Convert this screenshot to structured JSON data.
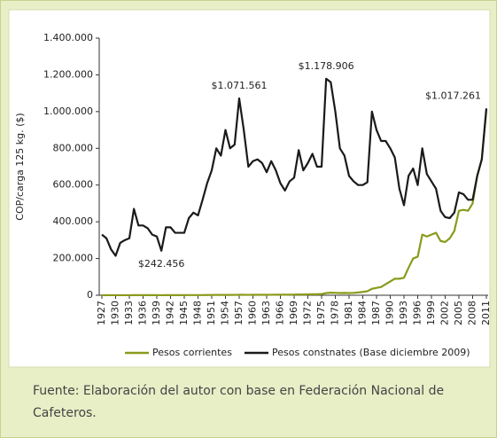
{
  "chart_data": {
    "type": "line",
    "y_label": "COP/carga 125 kg. ($)",
    "x": [
      1927,
      1928,
      1929,
      1930,
      1931,
      1932,
      1933,
      1934,
      1935,
      1936,
      1937,
      1938,
      1939,
      1940,
      1941,
      1942,
      1943,
      1944,
      1945,
      1946,
      1947,
      1948,
      1949,
      1950,
      1951,
      1952,
      1953,
      1954,
      1955,
      1956,
      1957,
      1958,
      1959,
      1960,
      1961,
      1962,
      1963,
      1964,
      1965,
      1966,
      1967,
      1968,
      1969,
      1970,
      1971,
      1972,
      1973,
      1974,
      1975,
      1976,
      1977,
      1978,
      1979,
      1980,
      1981,
      1982,
      1983,
      1984,
      1985,
      1986,
      1987,
      1988,
      1989,
      1990,
      1991,
      1992,
      1993,
      1994,
      1995,
      1996,
      1997,
      1998,
      1999,
      2000,
      2001,
      2002,
      2003,
      2004,
      2005,
      2006,
      2007,
      2008,
      2009,
      2010,
      2011
    ],
    "series": [
      {
        "name": "Pesos corrientes",
        "color": "#8a9a1b",
        "values": [
          400,
          400,
          350,
          300,
          300,
          300,
          350,
          500,
          450,
          450,
          450,
          450,
          450,
          400,
          500,
          500,
          550,
          600,
          650,
          800,
          900,
          950,
          1000,
          1200,
          1400,
          1700,
          1800,
          2000,
          2000,
          2100,
          2700,
          2500,
          2200,
          2300,
          2400,
          2400,
          2400,
          2800,
          2900,
          3000,
          3000,
          3300,
          3500,
          4500,
          4200,
          4700,
          5500,
          5500,
          6500,
          12000,
          14000,
          13000,
          12000,
          12500,
          12000,
          13000,
          15000,
          18000,
          22000,
          35000,
          40000,
          45000,
          60000,
          75000,
          90000,
          90000,
          95000,
          150000,
          200000,
          210000,
          330000,
          320000,
          330000,
          340000,
          295000,
          290000,
          310000,
          350000,
          460000,
          465000,
          460000,
          500000,
          650000,
          740000,
          1010000
        ]
      },
      {
        "name": "Pesos constnates (Base diciembre 2009)",
        "color": "#1a1a1a",
        "values": [
          330000,
          310000,
          250000,
          215000,
          285000,
          300000,
          310000,
          470000,
          380000,
          380000,
          365000,
          330000,
          320000,
          242456,
          370000,
          370000,
          340000,
          340000,
          340000,
          420000,
          450000,
          435000,
          520000,
          610000,
          680000,
          800000,
          760000,
          900000,
          800000,
          820000,
          1071561,
          900000,
          700000,
          730000,
          740000,
          720000,
          670000,
          730000,
          680000,
          610000,
          570000,
          620000,
          640000,
          790000,
          680000,
          720000,
          770000,
          700000,
          700000,
          1178906,
          1160000,
          1000000,
          800000,
          760000,
          650000,
          620000,
          600000,
          600000,
          615000,
          1000000,
          900000,
          840000,
          840000,
          800000,
          750000,
          580000,
          490000,
          650000,
          690000,
          600000,
          800000,
          660000,
          620000,
          580000,
          460000,
          425000,
          420000,
          450000,
          560000,
          550000,
          520000,
          520000,
          650000,
          740000,
          1017261
        ]
      }
    ],
    "annotations": [
      {
        "text": "$1.071.561",
        "x": 1957,
        "y": 1071561
      },
      {
        "text": "$1.178.906",
        "x": 1976,
        "y": 1178906
      },
      {
        "text": "$242.456",
        "x": 1940,
        "y": 242456
      },
      {
        "text": "$1.017.261",
        "x": 2011,
        "y": 1017261
      }
    ],
    "xlim": [
      1927,
      2011
    ],
    "xticks": [
      1927,
      1930,
      1933,
      1936,
      1939,
      1942,
      1945,
      1948,
      1951,
      1954,
      1957,
      1960,
      1963,
      1966,
      1969,
      1972,
      1975,
      1978,
      1981,
      1984,
      1987,
      1990,
      1993,
      1996,
      1999,
      2002,
      2005,
      2008,
      2011
    ],
    "ylim": [
      0,
      1400000
    ],
    "yticks": [
      0,
      {
        "value": 200000,
        "label": "200.000"
      },
      {
        "value": 400000,
        "label": "400.000"
      },
      {
        "value": 600000,
        "label": "600.000"
      },
      {
        "value": 800000,
        "label": "800.000"
      },
      {
        "value": 1000000,
        "label": "1.000.000"
      },
      {
        "value": 1200000,
        "label": "1.200.000"
      },
      {
        "value": 1400000,
        "label": "1.400.000"
      }
    ],
    "legend": "bottom"
  },
  "caption": "Fuente: Elaboración del autor con base en Federación Nacional de Cafeteros."
}
